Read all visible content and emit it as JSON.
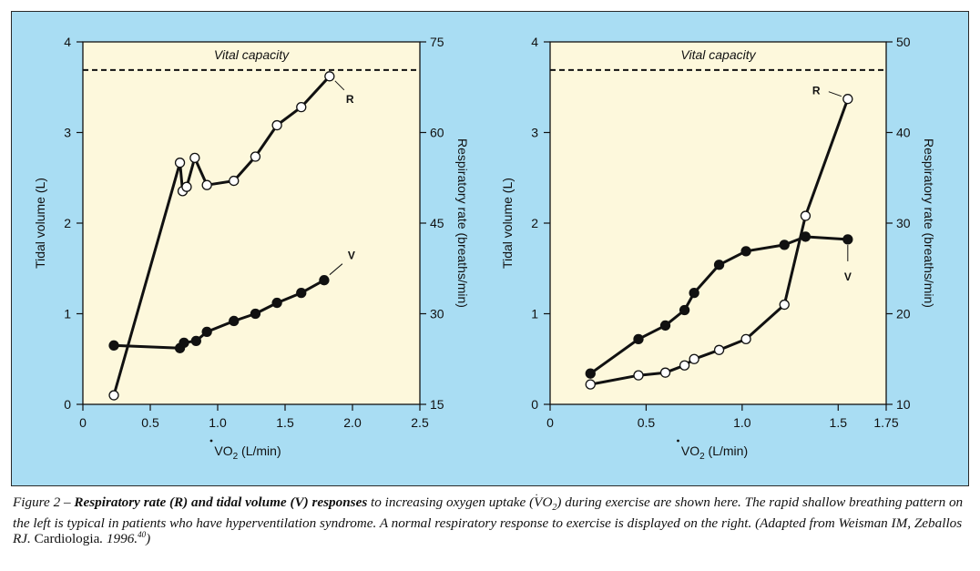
{
  "chart_data": [
    {
      "type": "line",
      "title": "Vital capacity",
      "xlabel": "VO2 (L/min)",
      "ylabel": "Tidal volume (L)",
      "y2label": "Respiratory rate (breaths/min)",
      "xlim": [
        0,
        2.5
      ],
      "ylim": [
        0,
        4
      ],
      "y2lim": [
        15,
        75
      ],
      "xticks": [
        0,
        0.5,
        1.0,
        1.5,
        2.0,
        2.5
      ],
      "xtick_labels": [
        "0",
        "0.5",
        "1.0",
        "1.5",
        "2.0",
        "2.5"
      ],
      "yticks": [
        0,
        1,
        2,
        3,
        4
      ],
      "ytick_labels": [
        "0",
        "1",
        "2",
        "3",
        "4"
      ],
      "y2ticks": [
        15,
        30,
        45,
        60,
        75
      ],
      "y2tick_labels": [
        "15",
        "30",
        "45",
        "60",
        "75"
      ],
      "vital_capacity": 3.69,
      "grid": false,
      "series": [
        {
          "name": "R",
          "axis": "right",
          "marker": "open",
          "x": [
            0.23,
            0.72,
            0.74,
            0.77,
            0.83,
            0.92,
            1.12,
            1.28,
            1.44,
            1.62,
            1.83
          ],
          "y": [
            16.5,
            55.0,
            50.3,
            51.0,
            55.8,
            51.3,
            52.0,
            56.0,
            61.2,
            64.2,
            69.3
          ]
        },
        {
          "name": "V",
          "axis": "left",
          "marker": "filled",
          "x": [
            0.23,
            0.72,
            0.75,
            0.84,
            0.92,
            1.12,
            1.28,
            1.44,
            1.62,
            1.79
          ],
          "y": [
            0.65,
            0.62,
            0.68,
            0.7,
            0.8,
            0.92,
            1.0,
            1.12,
            1.23,
            1.37
          ]
        }
      ],
      "labels": {
        "R": "R",
        "V": "V"
      }
    },
    {
      "type": "line",
      "title": "Vital capacity",
      "xlabel": "VO2 (L/min)",
      "ylabel": "Tidal volume (L)",
      "y2label": "Respiratory rate (breaths/min)",
      "xlim": [
        0,
        1.75
      ],
      "ylim": [
        0,
        4
      ],
      "y2lim": [
        10,
        50
      ],
      "xticks": [
        0,
        0.5,
        1.0,
        1.5,
        1.75
      ],
      "xtick_labels": [
        "0",
        "0.5",
        "1.0",
        "1.5",
        "1.75"
      ],
      "yticks": [
        0,
        1,
        2,
        3,
        4
      ],
      "ytick_labels": [
        "0",
        "1",
        "2",
        "3",
        "4"
      ],
      "y2ticks": [
        10,
        20,
        30,
        40,
        50
      ],
      "y2tick_labels": [
        "10",
        "20",
        "30",
        "40",
        "50"
      ],
      "vital_capacity": 3.69,
      "grid": false,
      "series": [
        {
          "name": "R",
          "axis": "right",
          "marker": "open",
          "x": [
            0.21,
            0.46,
            0.6,
            0.7,
            0.75,
            0.88,
            1.02,
            1.22,
            1.33,
            1.55
          ],
          "y": [
            12.2,
            13.2,
            13.5,
            14.3,
            15.0,
            16.0,
            17.2,
            21.0,
            30.8,
            43.7
          ]
        },
        {
          "name": "V",
          "axis": "left",
          "marker": "filled",
          "x": [
            0.21,
            0.46,
            0.6,
            0.7,
            0.75,
            0.88,
            1.02,
            1.22,
            1.33,
            1.55
          ],
          "y": [
            0.34,
            0.72,
            0.87,
            1.04,
            1.23,
            1.54,
            1.69,
            1.76,
            1.85,
            1.82
          ]
        }
      ],
      "labels": {
        "R": "R",
        "V": "V"
      }
    }
  ],
  "caption": {
    "lead": "Figure 2 – ",
    "bold": "Respiratory rate (R) and tidal volume (V) responses",
    "part1": " to increasing oxygen uptake (",
    "vo_letter": "V",
    "vo_dot": "·",
    "vo_O": "O",
    "vo_sub": "2",
    "part2": ") during exercise are shown here. The rapid shallow breathing pattern on the left is typical in patients who have hyperventilation syndrome. A normal respiratory response to exercise is displayed on the right. (Adapted from Weisman IM, Zeballos RJ. ",
    "journal": "Cardiologia",
    "part3": ". 1996.",
    "ref": "40",
    "end": ")"
  },
  "colors": {
    "panel_bg": "#a9ddf3",
    "plot_bg": "#fdf8dc",
    "ink": "#111111"
  }
}
